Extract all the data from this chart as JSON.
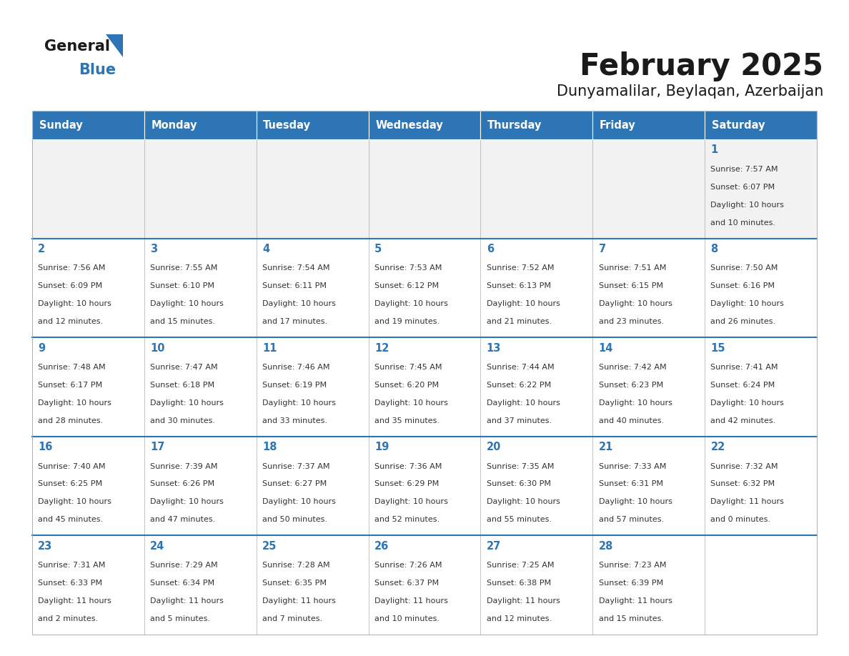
{
  "title": "February 2025",
  "subtitle": "Dunyamalilar, Beylaqan, Azerbaijan",
  "header_bg": "#2E75B6",
  "header_text_color": "#FFFFFF",
  "header_days": [
    "Sunday",
    "Monday",
    "Tuesday",
    "Wednesday",
    "Thursday",
    "Friday",
    "Saturday"
  ],
  "cell_bg_white": "#FFFFFF",
  "cell_bg_gray": "#F2F2F2",
  "cell_border_color": "#AAAAAA",
  "row_top_border_color": "#2E75B6",
  "title_color": "#1a1a1a",
  "subtitle_color": "#1a1a1a",
  "day_number_color": "#2E75B6",
  "info_color": "#333333",
  "logo_general_color": "#1a1a1a",
  "logo_blue_color": "#2E75B6",
  "calendar_data": [
    [
      null,
      null,
      null,
      null,
      null,
      null,
      {
        "day": 1,
        "sunrise": "7:57 AM",
        "sunset": "6:07 PM",
        "daylight": "10 hours and 10 minutes."
      }
    ],
    [
      {
        "day": 2,
        "sunrise": "7:56 AM",
        "sunset": "6:09 PM",
        "daylight": "10 hours and 12 minutes."
      },
      {
        "day": 3,
        "sunrise": "7:55 AM",
        "sunset": "6:10 PM",
        "daylight": "10 hours and 15 minutes."
      },
      {
        "day": 4,
        "sunrise": "7:54 AM",
        "sunset": "6:11 PM",
        "daylight": "10 hours and 17 minutes."
      },
      {
        "day": 5,
        "sunrise": "7:53 AM",
        "sunset": "6:12 PM",
        "daylight": "10 hours and 19 minutes."
      },
      {
        "day": 6,
        "sunrise": "7:52 AM",
        "sunset": "6:13 PM",
        "daylight": "10 hours and 21 minutes."
      },
      {
        "day": 7,
        "sunrise": "7:51 AM",
        "sunset": "6:15 PM",
        "daylight": "10 hours and 23 minutes."
      },
      {
        "day": 8,
        "sunrise": "7:50 AM",
        "sunset": "6:16 PM",
        "daylight": "10 hours and 26 minutes."
      }
    ],
    [
      {
        "day": 9,
        "sunrise": "7:48 AM",
        "sunset": "6:17 PM",
        "daylight": "10 hours and 28 minutes."
      },
      {
        "day": 10,
        "sunrise": "7:47 AM",
        "sunset": "6:18 PM",
        "daylight": "10 hours and 30 minutes."
      },
      {
        "day": 11,
        "sunrise": "7:46 AM",
        "sunset": "6:19 PM",
        "daylight": "10 hours and 33 minutes."
      },
      {
        "day": 12,
        "sunrise": "7:45 AM",
        "sunset": "6:20 PM",
        "daylight": "10 hours and 35 minutes."
      },
      {
        "day": 13,
        "sunrise": "7:44 AM",
        "sunset": "6:22 PM",
        "daylight": "10 hours and 37 minutes."
      },
      {
        "day": 14,
        "sunrise": "7:42 AM",
        "sunset": "6:23 PM",
        "daylight": "10 hours and 40 minutes."
      },
      {
        "day": 15,
        "sunrise": "7:41 AM",
        "sunset": "6:24 PM",
        "daylight": "10 hours and 42 minutes."
      }
    ],
    [
      {
        "day": 16,
        "sunrise": "7:40 AM",
        "sunset": "6:25 PM",
        "daylight": "10 hours and 45 minutes."
      },
      {
        "day": 17,
        "sunrise": "7:39 AM",
        "sunset": "6:26 PM",
        "daylight": "10 hours and 47 minutes."
      },
      {
        "day": 18,
        "sunrise": "7:37 AM",
        "sunset": "6:27 PM",
        "daylight": "10 hours and 50 minutes."
      },
      {
        "day": 19,
        "sunrise": "7:36 AM",
        "sunset": "6:29 PM",
        "daylight": "10 hours and 52 minutes."
      },
      {
        "day": 20,
        "sunrise": "7:35 AM",
        "sunset": "6:30 PM",
        "daylight": "10 hours and 55 minutes."
      },
      {
        "day": 21,
        "sunrise": "7:33 AM",
        "sunset": "6:31 PM",
        "daylight": "10 hours and 57 minutes."
      },
      {
        "day": 22,
        "sunrise": "7:32 AM",
        "sunset": "6:32 PM",
        "daylight": "11 hours and 0 minutes."
      }
    ],
    [
      {
        "day": 23,
        "sunrise": "7:31 AM",
        "sunset": "6:33 PM",
        "daylight": "11 hours and 2 minutes."
      },
      {
        "day": 24,
        "sunrise": "7:29 AM",
        "sunset": "6:34 PM",
        "daylight": "11 hours and 5 minutes."
      },
      {
        "day": 25,
        "sunrise": "7:28 AM",
        "sunset": "6:35 PM",
        "daylight": "11 hours and 7 minutes."
      },
      {
        "day": 26,
        "sunrise": "7:26 AM",
        "sunset": "6:37 PM",
        "daylight": "11 hours and 10 minutes."
      },
      {
        "day": 27,
        "sunrise": "7:25 AM",
        "sunset": "6:38 PM",
        "daylight": "11 hours and 12 minutes."
      },
      {
        "day": 28,
        "sunrise": "7:23 AM",
        "sunset": "6:39 PM",
        "daylight": "11 hours and 15 minutes."
      },
      null
    ]
  ]
}
